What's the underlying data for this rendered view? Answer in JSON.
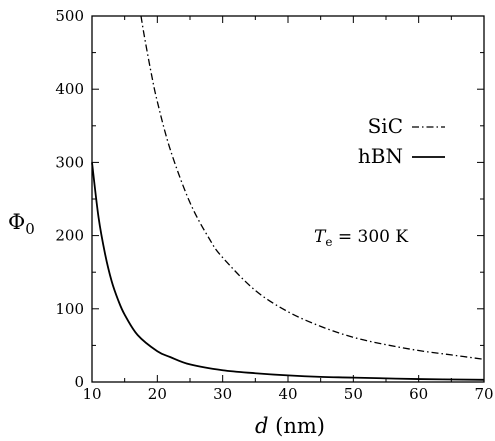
{
  "chart_data": {
    "type": "line",
    "xlabel": {
      "var": "d",
      "unit": "(nm)"
    },
    "ylabel": {
      "main": "Φ",
      "sub": "0"
    },
    "xlim": [
      10,
      70
    ],
    "ylim": [
      0,
      500
    ],
    "xticks": [
      10,
      20,
      30,
      40,
      50,
      60,
      70
    ],
    "yticks": [
      0,
      100,
      200,
      300,
      400,
      500
    ],
    "grid": false,
    "legend_position": "right",
    "series": [
      {
        "name": "SiC",
        "style": "dash-dot",
        "color": "#000000",
        "x": [
          17.5,
          18,
          19,
          20,
          22,
          25,
          28,
          30,
          35,
          40,
          45,
          50,
          55,
          60,
          65,
          70
        ],
        "y": [
          500,
          473,
          425,
          383,
          317,
          245,
          195,
          170,
          125,
          96,
          76,
          61,
          51,
          43,
          37,
          31
        ]
      },
      {
        "name": "hBN",
        "style": "solid",
        "color": "#000000",
        "x": [
          10,
          11,
          12,
          13,
          14,
          15,
          17,
          20,
          22,
          25,
          30,
          35,
          40,
          45,
          50,
          60,
          70
        ],
        "y": [
          300,
          225,
          175,
          138,
          112,
          92,
          64,
          42,
          34,
          24,
          16,
          12,
          9,
          7,
          6,
          4,
          3
        ]
      }
    ],
    "annotation": {
      "var": "T",
      "sub": "e",
      "rest": " = 300 K"
    }
  }
}
